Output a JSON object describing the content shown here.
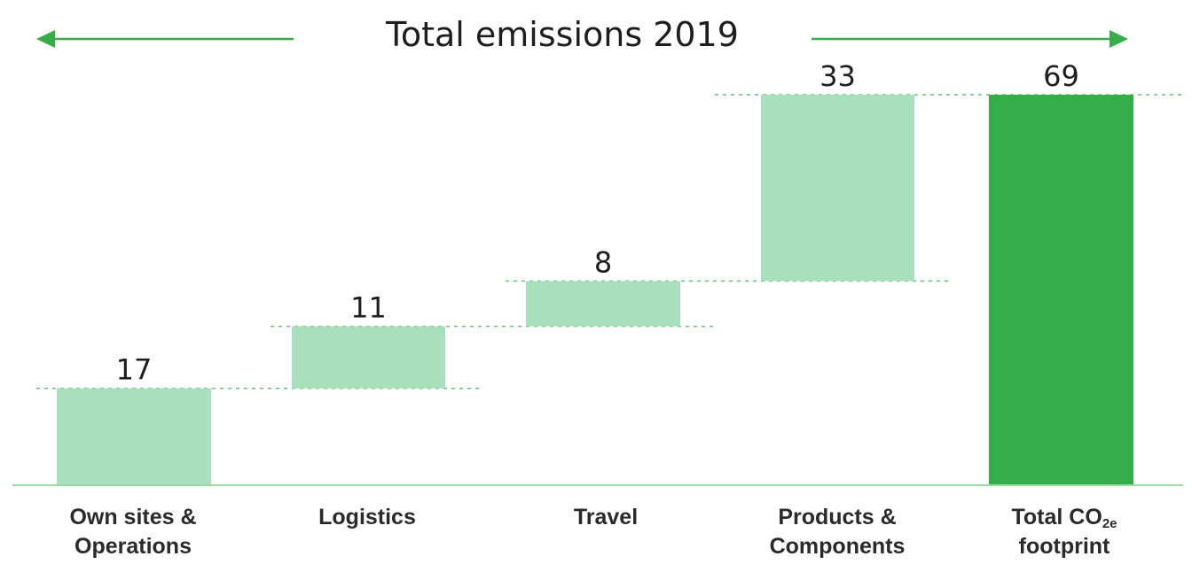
{
  "header": {
    "title": "Total emissions 2019"
  },
  "colors": {
    "step_bar": "#a8dfbd",
    "total_bar": "#35ae4a",
    "axis": "#9fd8a9",
    "guide": "#6cc07a",
    "arrow": "#35ae4a"
  },
  "chart_data": {
    "type": "bar",
    "subtype": "waterfall",
    "title": "Total emissions 2019",
    "categories": [
      [
        "Own sites &",
        "Operations"
      ],
      [
        "Logistics"
      ],
      [
        "Travel"
      ],
      [
        "Products &",
        "Components"
      ],
      [
        "Total CO",
        "footprint"
      ]
    ],
    "category_subscript": {
      "index": 4,
      "line": 0,
      "text": "2e"
    },
    "values": [
      17,
      11,
      8,
      33,
      69
    ],
    "total_index": 4,
    "ylim": [
      0,
      69
    ],
    "grid": false,
    "legend": "none"
  }
}
